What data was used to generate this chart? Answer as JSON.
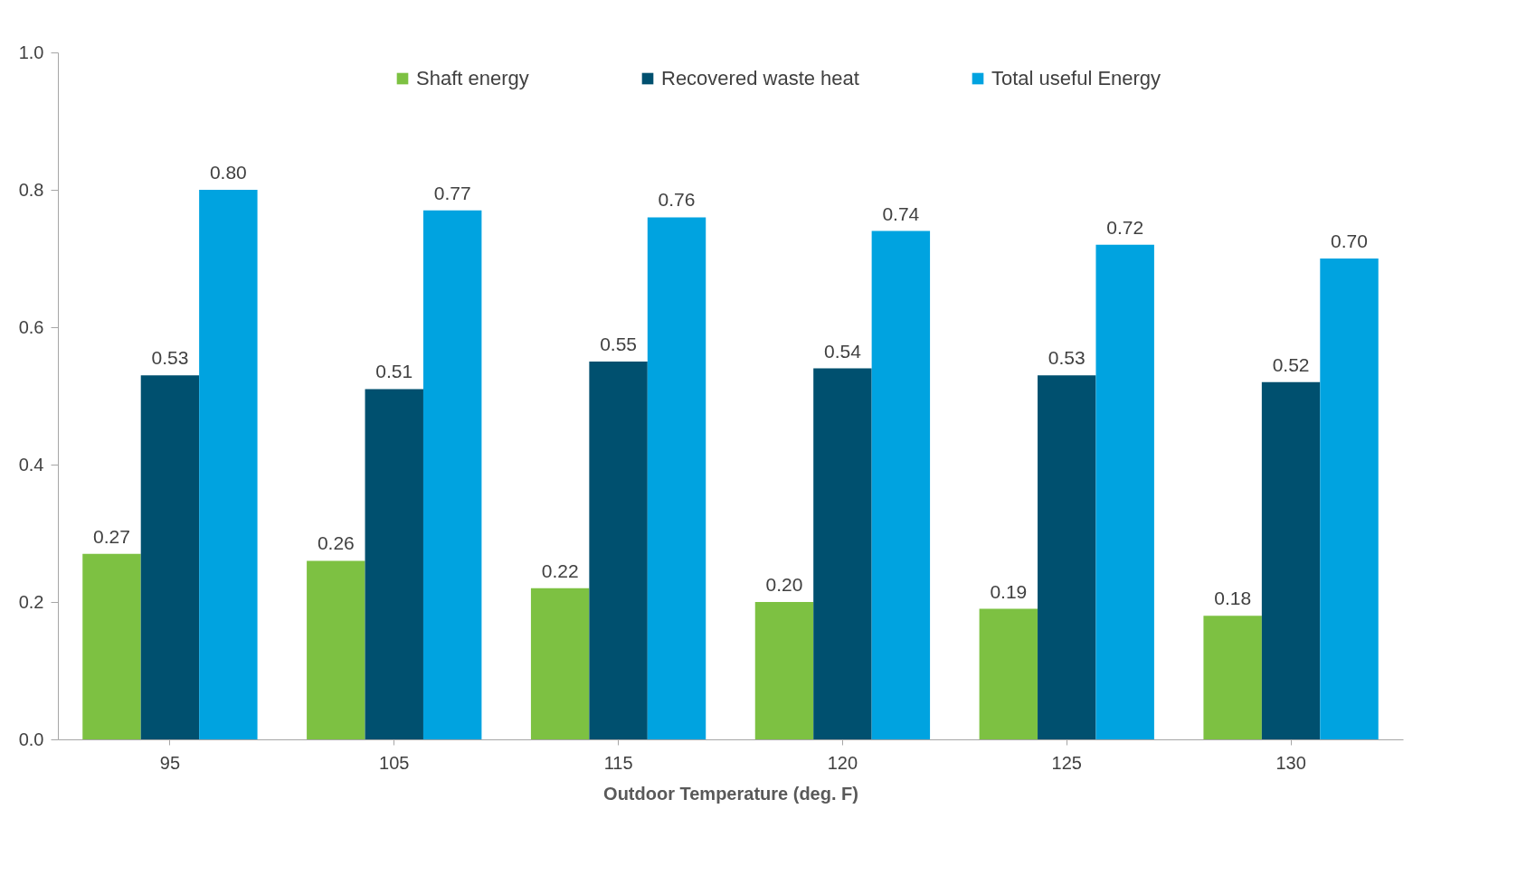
{
  "chart_data": {
    "type": "bar",
    "xlabel": "Outdoor Temperature (deg. F)",
    "categories": [
      "95",
      "105",
      "115",
      "120",
      "125",
      "130"
    ],
    "series": [
      {
        "name": "Shaft energy",
        "color": "#7dc142",
        "values": [
          0.27,
          0.26,
          0.22,
          0.2,
          0.19,
          0.18
        ],
        "value_labels": [
          "0.27",
          "0.26",
          "0.22",
          "0.20",
          "0.19",
          "0.18"
        ]
      },
      {
        "name": "Recovered waste heat",
        "color": "#00506f",
        "values": [
          0.53,
          0.51,
          0.55,
          0.54,
          0.53,
          0.52
        ],
        "value_labels": [
          "0.53",
          "0.51",
          "0.55",
          "0.54",
          "0.53",
          "0.52"
        ]
      },
      {
        "name": "Total useful Energy",
        "color": "#00a3e0",
        "values": [
          0.8,
          0.77,
          0.76,
          0.74,
          0.72,
          0.7
        ],
        "value_labels": [
          "0.80",
          "0.77",
          "0.76",
          "0.74",
          "0.72",
          "0.70"
        ]
      }
    ],
    "ylim": [
      0,
      1.0
    ],
    "yticks": [
      {
        "value": 0,
        "label": "0.0"
      },
      {
        "value": 0.2,
        "label": "0.2"
      },
      {
        "value": 0.4,
        "label": "0.4"
      },
      {
        "value": 0.6,
        "label": "0.6"
      },
      {
        "value": 0.8,
        "label": "0.8"
      },
      {
        "value": 1.0,
        "label": "1.0"
      }
    ],
    "grid": false,
    "legend": "top"
  }
}
